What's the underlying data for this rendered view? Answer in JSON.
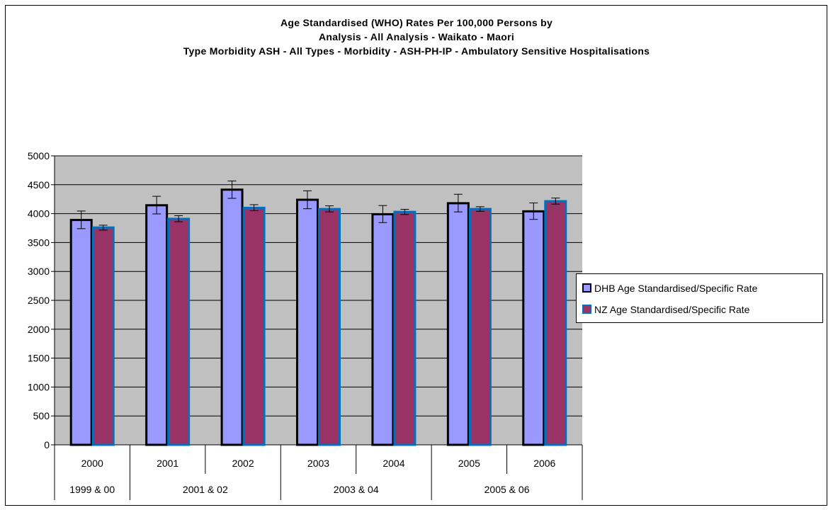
{
  "chart_data": {
    "type": "bar",
    "title_lines": [
      "Age Standardised (WHO) Rates Per 100,000 Persons by",
      "Analysis - All Analysis - Waikato - Maori",
      "Type Morbidity ASH - All Types - Morbidity - ASH-PH-IP - Ambulatory Sensitive Hospitalisations"
    ],
    "categories": [
      "2000",
      "2001",
      "2002",
      "2003",
      "2004",
      "2005",
      "2006"
    ],
    "category_groups": [
      {
        "label": "1999 & 00",
        "span": 1
      },
      {
        "label": "2001 & 02",
        "span": 2
      },
      {
        "label": "2003 & 04",
        "span": 2
      },
      {
        "label": "2005 & 06",
        "span": 2
      }
    ],
    "series": [
      {
        "name": "DHB Age Standardised/Specific Rate",
        "values": [
          3890,
          4145,
          4415,
          4240,
          3990,
          4180,
          4040
        ],
        "error_low": [
          3740,
          3995,
          4265,
          4085,
          3845,
          4030,
          3900
        ],
        "error_high": [
          4045,
          4300,
          4565,
          4395,
          4140,
          4335,
          4185
        ],
        "fill": "#9999ff",
        "border": "#000000"
      },
      {
        "name": "NZ Age Standardised/Specific Rate",
        "values": [
          3760,
          3910,
          4100,
          4080,
          4030,
          4080,
          4215
        ],
        "error_low": [
          3715,
          3860,
          4050,
          4030,
          3985,
          4040,
          4165
        ],
        "error_high": [
          3800,
          3965,
          4155,
          4135,
          4075,
          4120,
          4270
        ],
        "fill": "#993366",
        "border": "#0070c0"
      }
    ],
    "y_ticks": [
      "0",
      "500",
      "1000",
      "1500",
      "2000",
      "2500",
      "3000",
      "3500",
      "4000",
      "4500",
      "5000"
    ],
    "ylim": [
      0,
      5000
    ],
    "grid": true,
    "plot_background": "#c0c0c0",
    "legend_position": "right"
  }
}
